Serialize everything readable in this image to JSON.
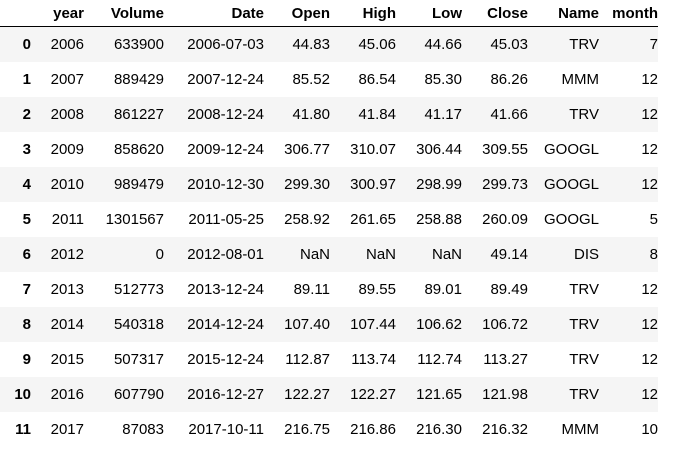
{
  "table": {
    "index_header": "",
    "columns": [
      "year",
      "Volume",
      "Date",
      "Open",
      "High",
      "Low",
      "Close",
      "Name",
      "month"
    ],
    "rows": [
      {
        "index": "0",
        "cells": [
          "2006",
          "633900",
          "2006-07-03",
          "44.83",
          "45.06",
          "44.66",
          "45.03",
          "TRV",
          "7"
        ]
      },
      {
        "index": "1",
        "cells": [
          "2007",
          "889429",
          "2007-12-24",
          "85.52",
          "86.54",
          "85.30",
          "86.26",
          "MMM",
          "12"
        ]
      },
      {
        "index": "2",
        "cells": [
          "2008",
          "861227",
          "2008-12-24",
          "41.80",
          "41.84",
          "41.17",
          "41.66",
          "TRV",
          "12"
        ]
      },
      {
        "index": "3",
        "cells": [
          "2009",
          "858620",
          "2009-12-24",
          "306.77",
          "310.07",
          "306.44",
          "309.55",
          "GOOGL",
          "12"
        ]
      },
      {
        "index": "4",
        "cells": [
          "2010",
          "989479",
          "2010-12-30",
          "299.30",
          "300.97",
          "298.99",
          "299.73",
          "GOOGL",
          "12"
        ]
      },
      {
        "index": "5",
        "cells": [
          "2011",
          "1301567",
          "2011-05-25",
          "258.92",
          "261.65",
          "258.88",
          "260.09",
          "GOOGL",
          "5"
        ]
      },
      {
        "index": "6",
        "cells": [
          "2012",
          "0",
          "2012-08-01",
          "NaN",
          "NaN",
          "NaN",
          "49.14",
          "DIS",
          "8"
        ]
      },
      {
        "index": "7",
        "cells": [
          "2013",
          "512773",
          "2013-12-24",
          "89.11",
          "89.55",
          "89.01",
          "89.49",
          "TRV",
          "12"
        ]
      },
      {
        "index": "8",
        "cells": [
          "2014",
          "540318",
          "2014-12-24",
          "107.40",
          "107.44",
          "106.62",
          "106.72",
          "TRV",
          "12"
        ]
      },
      {
        "index": "9",
        "cells": [
          "2015",
          "507317",
          "2015-12-24",
          "112.87",
          "113.74",
          "112.74",
          "113.27",
          "TRV",
          "12"
        ]
      },
      {
        "index": "10",
        "cells": [
          "2016",
          "607790",
          "2016-12-27",
          "122.27",
          "122.27",
          "121.65",
          "121.98",
          "TRV",
          "12"
        ]
      },
      {
        "index": "11",
        "cells": [
          "2017",
          "87083",
          "2017-10-11",
          "216.75",
          "216.86",
          "216.30",
          "216.32",
          "MMM",
          "10"
        ]
      }
    ]
  }
}
